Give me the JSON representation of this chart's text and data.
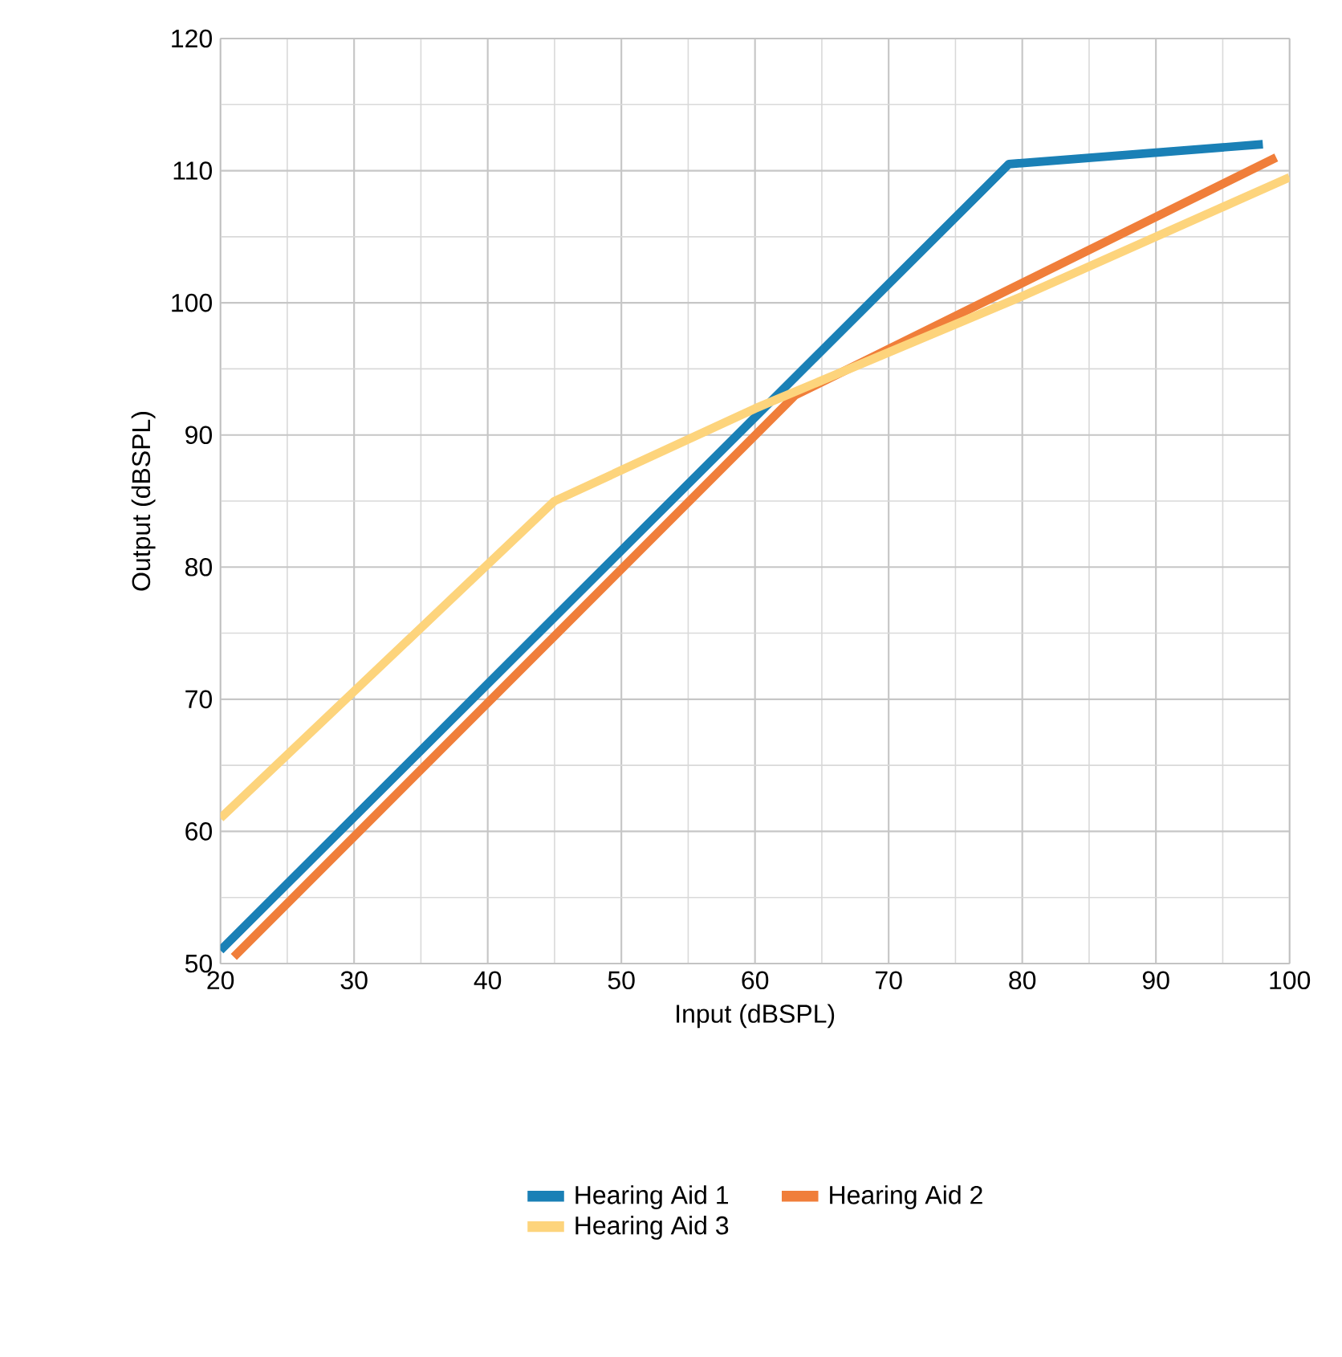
{
  "chart_data": {
    "type": "line",
    "xlabel": "Input (dBSPL)",
    "ylabel": "Output (dBSPL)",
    "xlim": [
      20,
      100
    ],
    "ylim": [
      50,
      120
    ],
    "xticks": [
      20,
      30,
      40,
      50,
      60,
      70,
      80,
      90,
      100
    ],
    "yticks": [
      50,
      60,
      70,
      80,
      90,
      100,
      110,
      120
    ],
    "grid": true,
    "legend": "bottom",
    "series": [
      {
        "name": "Hearing Aid 1",
        "color": "#1a80b6",
        "x": [
          20,
          79,
          98
        ],
        "values": [
          51,
          110.5,
          112
        ]
      },
      {
        "name": "Hearing Aid 2",
        "color": "#f07e3a",
        "x": [
          21,
          63,
          99
        ],
        "values": [
          50.5,
          93,
          111
        ]
      },
      {
        "name": "Hearing Aid 3",
        "color": "#fdd47c",
        "x": [
          20,
          45,
          60,
          80,
          100
        ],
        "values": [
          61,
          85,
          92,
          100.5,
          109.5
        ]
      }
    ]
  }
}
